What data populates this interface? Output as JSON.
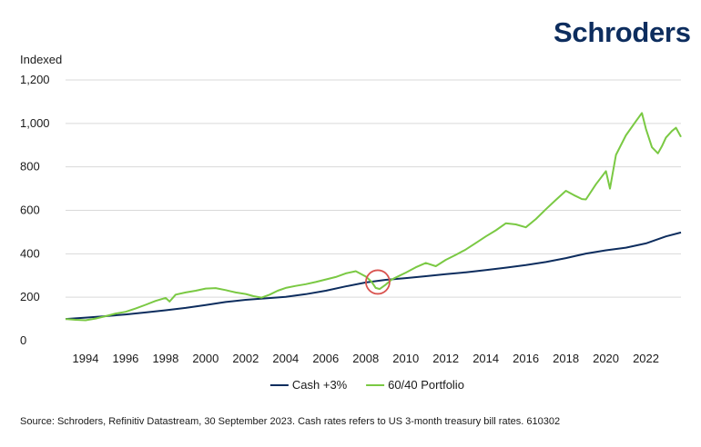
{
  "brand": {
    "logo_text": "Schroders",
    "logo_color": "#0d2d5e"
  },
  "chart_data": {
    "type": "line",
    "title": "",
    "ylabel": "Indexed",
    "xlabel": "",
    "ylim": [
      0,
      1200
    ],
    "xlim": [
      1993.0,
      2023.75
    ],
    "y_ticks": [
      "0",
      "200",
      "400",
      "600",
      "800",
      "1,000",
      "1,200"
    ],
    "y_tick_values": [
      0,
      200,
      400,
      600,
      800,
      1000,
      1200
    ],
    "x_ticks": [
      "1994",
      "1996",
      "1998",
      "2000",
      "2002",
      "2004",
      "2006",
      "2008",
      "2010",
      "2012",
      "2014",
      "2016",
      "2018",
      "2020",
      "2022"
    ],
    "x_tick_values": [
      1994,
      1996,
      1998,
      2000,
      2002,
      2004,
      2006,
      2008,
      2010,
      2012,
      2014,
      2016,
      2018,
      2020,
      2022
    ],
    "grid": true,
    "legend_position": "bottom-center",
    "annotation": {
      "type": "circle",
      "x": 2008.6,
      "y": 270,
      "color": "#d9534f"
    },
    "series": [
      {
        "name": "Cash +3%",
        "color": "#0d2d5e",
        "points": [
          [
            1993.0,
            100
          ],
          [
            1994,
            106
          ],
          [
            1995,
            113
          ],
          [
            1996,
            121
          ],
          [
            1997,
            130
          ],
          [
            1998,
            140
          ],
          [
            1999,
            151
          ],
          [
            2000,
            164
          ],
          [
            2001,
            178
          ],
          [
            2002,
            188
          ],
          [
            2003,
            195
          ],
          [
            2004,
            202
          ],
          [
            2005,
            214
          ],
          [
            2006,
            230
          ],
          [
            2007,
            250
          ],
          [
            2008,
            268
          ],
          [
            2009,
            280
          ],
          [
            2010,
            288
          ],
          [
            2011,
            297
          ],
          [
            2012,
            306
          ],
          [
            2013,
            315
          ],
          [
            2014,
            325
          ],
          [
            2015,
            336
          ],
          [
            2016,
            348
          ],
          [
            2017,
            362
          ],
          [
            2018,
            380
          ],
          [
            2019,
            401
          ],
          [
            2020,
            416
          ],
          [
            2021,
            428
          ],
          [
            2022,
            448
          ],
          [
            2023.0,
            480
          ],
          [
            2023.75,
            498
          ]
        ]
      },
      {
        "name": "60/40 Portfolio",
        "color": "#7ac943",
        "points": [
          [
            1993.0,
            100
          ],
          [
            1993.5,
            96
          ],
          [
            1994.0,
            94
          ],
          [
            1994.5,
            102
          ],
          [
            1995.0,
            113
          ],
          [
            1995.5,
            125
          ],
          [
            1996.0,
            133
          ],
          [
            1996.5,
            148
          ],
          [
            1997.0,
            165
          ],
          [
            1997.5,
            183
          ],
          [
            1998.0,
            197
          ],
          [
            1998.2,
            180
          ],
          [
            1998.5,
            212
          ],
          [
            1999.0,
            222
          ],
          [
            1999.5,
            230
          ],
          [
            2000.0,
            240
          ],
          [
            2000.5,
            242
          ],
          [
            2001.0,
            233
          ],
          [
            2001.5,
            222
          ],
          [
            2002.0,
            215
          ],
          [
            2002.4,
            205
          ],
          [
            2002.8,
            198
          ],
          [
            2003.2,
            212
          ],
          [
            2003.6,
            230
          ],
          [
            2004.0,
            243
          ],
          [
            2004.5,
            252
          ],
          [
            2005.0,
            260
          ],
          [
            2005.5,
            270
          ],
          [
            2006.0,
            282
          ],
          [
            2006.5,
            293
          ],
          [
            2007.0,
            310
          ],
          [
            2007.5,
            320
          ],
          [
            2008.0,
            295
          ],
          [
            2008.3,
            270
          ],
          [
            2008.5,
            243
          ],
          [
            2008.7,
            238
          ],
          [
            2009.0,
            258
          ],
          [
            2009.3,
            282
          ],
          [
            2009.7,
            300
          ],
          [
            2010.0,
            313
          ],
          [
            2010.5,
            338
          ],
          [
            2011.0,
            358
          ],
          [
            2011.5,
            343
          ],
          [
            2012.0,
            372
          ],
          [
            2012.5,
            395
          ],
          [
            2013.0,
            420
          ],
          [
            2013.5,
            450
          ],
          [
            2014.0,
            480
          ],
          [
            2014.5,
            508
          ],
          [
            2015.0,
            540
          ],
          [
            2015.5,
            535
          ],
          [
            2016.0,
            522
          ],
          [
            2016.5,
            560
          ],
          [
            2017.0,
            605
          ],
          [
            2017.5,
            648
          ],
          [
            2018.0,
            690
          ],
          [
            2018.4,
            670
          ],
          [
            2018.8,
            652
          ],
          [
            2019.0,
            650
          ],
          [
            2019.5,
            720
          ],
          [
            2020.0,
            780
          ],
          [
            2020.2,
            700
          ],
          [
            2020.5,
            855
          ],
          [
            2021.0,
            945
          ],
          [
            2021.5,
            1010
          ],
          [
            2021.8,
            1048
          ],
          [
            2022.0,
            975
          ],
          [
            2022.3,
            890
          ],
          [
            2022.6,
            862
          ],
          [
            2022.8,
            895
          ],
          [
            2023.0,
            935
          ],
          [
            2023.3,
            965
          ],
          [
            2023.5,
            980
          ],
          [
            2023.75,
            938
          ]
        ]
      }
    ]
  },
  "source_text": "Source: Schroders, Refinitiv Datastream, 30 September 2023. Cash rates refers to US 3-month treasury bill rates. 610302"
}
